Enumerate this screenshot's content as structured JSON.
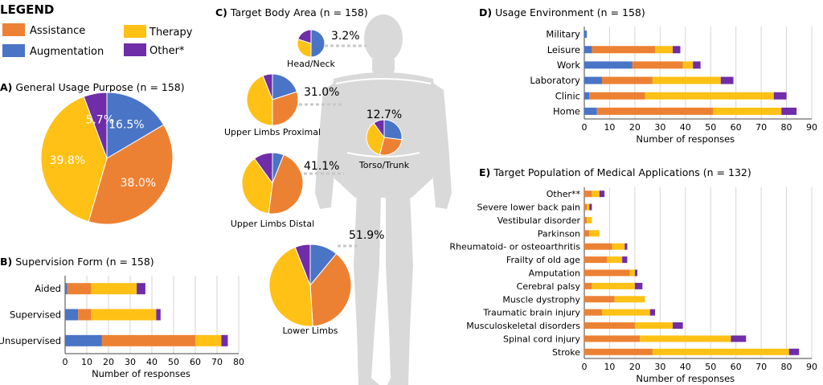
{
  "colors": {
    "assistance": "#ED8133",
    "augmentation": "#4A74C5",
    "therapy": "#FFC115",
    "other": "#6F2DA8",
    "grid": "#d6d6d6",
    "axis": "#444444",
    "silhouette": "#d9d9d9",
    "leader": "#c8c8c8"
  },
  "legend": {
    "title": "LEGEND",
    "items": [
      {
        "label": "Assistance",
        "key": "assistance"
      },
      {
        "label": "Therapy",
        "key": "therapy"
      },
      {
        "label": "Augmentation",
        "key": "augmentation"
      },
      {
        "label": "Other*",
        "key": "other"
      }
    ]
  },
  "chart_data": [
    {
      "id": "A",
      "type": "pie",
      "title_letter": "A)",
      "title": "General Usage Purpose (n = 158)",
      "slices": [
        {
          "key": "augmentation",
          "value": 16.5,
          "label": "16.5%"
        },
        {
          "key": "assistance",
          "value": 38.0,
          "label": "38.0%"
        },
        {
          "key": "therapy",
          "value": 39.8,
          "label": "39.8%"
        },
        {
          "key": "other",
          "value": 5.7,
          "label": "5.7%"
        }
      ]
    },
    {
      "id": "B",
      "type": "bar",
      "orientation": "horizontal",
      "stacked": true,
      "title_letter": "B)",
      "title": "Supervision Form (n = 158)",
      "xlabel": "Number of responses",
      "xlim": [
        0,
        80
      ],
      "xticks": [
        0,
        10,
        20,
        30,
        40,
        50,
        60,
        70,
        80
      ],
      "categories": [
        "Aided",
        "Supervised",
        "Unsupervised"
      ],
      "series": [
        {
          "key": "augmentation",
          "values": [
            1,
            6,
            17
          ]
        },
        {
          "key": "assistance",
          "values": [
            11,
            6,
            43
          ]
        },
        {
          "key": "therapy",
          "values": [
            21,
            30,
            12
          ]
        },
        {
          "key": "other",
          "values": [
            4,
            2,
            3
          ]
        }
      ]
    },
    {
      "id": "C",
      "type": "pie",
      "title_letter": "C)",
      "title": "Target Body Area (n = 158)",
      "regions": [
        {
          "name": "Head/Neck",
          "percent_label": "3.2%",
          "slices": [
            {
              "key": "augmentation",
              "value": 50
            },
            {
              "key": "therapy",
              "value": 30
            },
            {
              "key": "other",
              "value": 20
            }
          ]
        },
        {
          "name": "Upper Limbs Proximal",
          "percent_label": "31.0%",
          "slices": [
            {
              "key": "augmentation",
              "value": 20
            },
            {
              "key": "assistance",
              "value": 30
            },
            {
              "key": "therapy",
              "value": 44
            },
            {
              "key": "other",
              "value": 6
            }
          ]
        },
        {
          "name": "Torso/Trunk",
          "percent_label": "12.7%",
          "slices": [
            {
              "key": "augmentation",
              "value": 27
            },
            {
              "key": "assistance",
              "value": 27
            },
            {
              "key": "therapy",
              "value": 36
            },
            {
              "key": "other",
              "value": 10
            }
          ]
        },
        {
          "name": "Upper Limbs Distal",
          "percent_label": "41.1%",
          "slices": [
            {
              "key": "augmentation",
              "value": 6
            },
            {
              "key": "assistance",
              "value": 46
            },
            {
              "key": "therapy",
              "value": 38
            },
            {
              "key": "other",
              "value": 10
            }
          ]
        },
        {
          "name": "Lower Limbs",
          "percent_label": "51.9%",
          "slices": [
            {
              "key": "augmentation",
              "value": 11
            },
            {
              "key": "assistance",
              "value": 38
            },
            {
              "key": "therapy",
              "value": 45
            },
            {
              "key": "other",
              "value": 6
            }
          ]
        }
      ]
    },
    {
      "id": "D",
      "type": "bar",
      "orientation": "horizontal",
      "stacked": true,
      "title_letter": "D)",
      "title": "Usage Environment  (n = 158)",
      "xlabel": "Number of responses",
      "xlim": [
        0,
        90
      ],
      "xticks": [
        0,
        10,
        20,
        30,
        40,
        50,
        60,
        70,
        80,
        90
      ],
      "categories": [
        "Military",
        "Leisure",
        "Work",
        "Laboratory",
        "Clinic",
        "Home"
      ],
      "series": [
        {
          "key": "augmentation",
          "values": [
            1,
            3,
            19,
            7,
            2,
            5
          ]
        },
        {
          "key": "assistance",
          "values": [
            0,
            25,
            20,
            20,
            22,
            46
          ]
        },
        {
          "key": "therapy",
          "values": [
            0,
            7,
            4,
            27,
            51,
            27
          ]
        },
        {
          "key": "other",
          "values": [
            0,
            3,
            3,
            5,
            5,
            6
          ]
        }
      ]
    },
    {
      "id": "E",
      "type": "bar",
      "orientation": "horizontal",
      "stacked": true,
      "title_letter": "E)",
      "title": "Target Population of Medical Applications (n = 132)",
      "xlabel": "Number of responses",
      "xlim": [
        0,
        90
      ],
      "xticks": [
        0,
        10,
        20,
        30,
        40,
        50,
        60,
        70,
        80,
        90
      ],
      "categories": [
        "Other**",
        "Severe lower back pain",
        "Vestibular disorder",
        "Parkinson",
        "Rheumatoid- or osteoarthritis",
        "Frailty of old age",
        "Amputation",
        "Cerebral palsy",
        "Muscle dystrophy",
        "Traumatic brain injury",
        "Musculoskeletal disorders",
        "Spinal cord injury",
        "Stroke"
      ],
      "series": [
        {
          "key": "assistance",
          "values": [
            3,
            1,
            1,
            2,
            11,
            9,
            18,
            3,
            12,
            7,
            20,
            22,
            27
          ]
        },
        {
          "key": "therapy",
          "values": [
            3,
            1,
            2,
            4,
            5,
            6,
            2,
            17,
            12,
            19,
            15,
            36,
            54
          ]
        },
        {
          "key": "other",
          "values": [
            2,
            1,
            0,
            0,
            1,
            2,
            1,
            3,
            0,
            2,
            4,
            6,
            4
          ]
        }
      ]
    }
  ]
}
